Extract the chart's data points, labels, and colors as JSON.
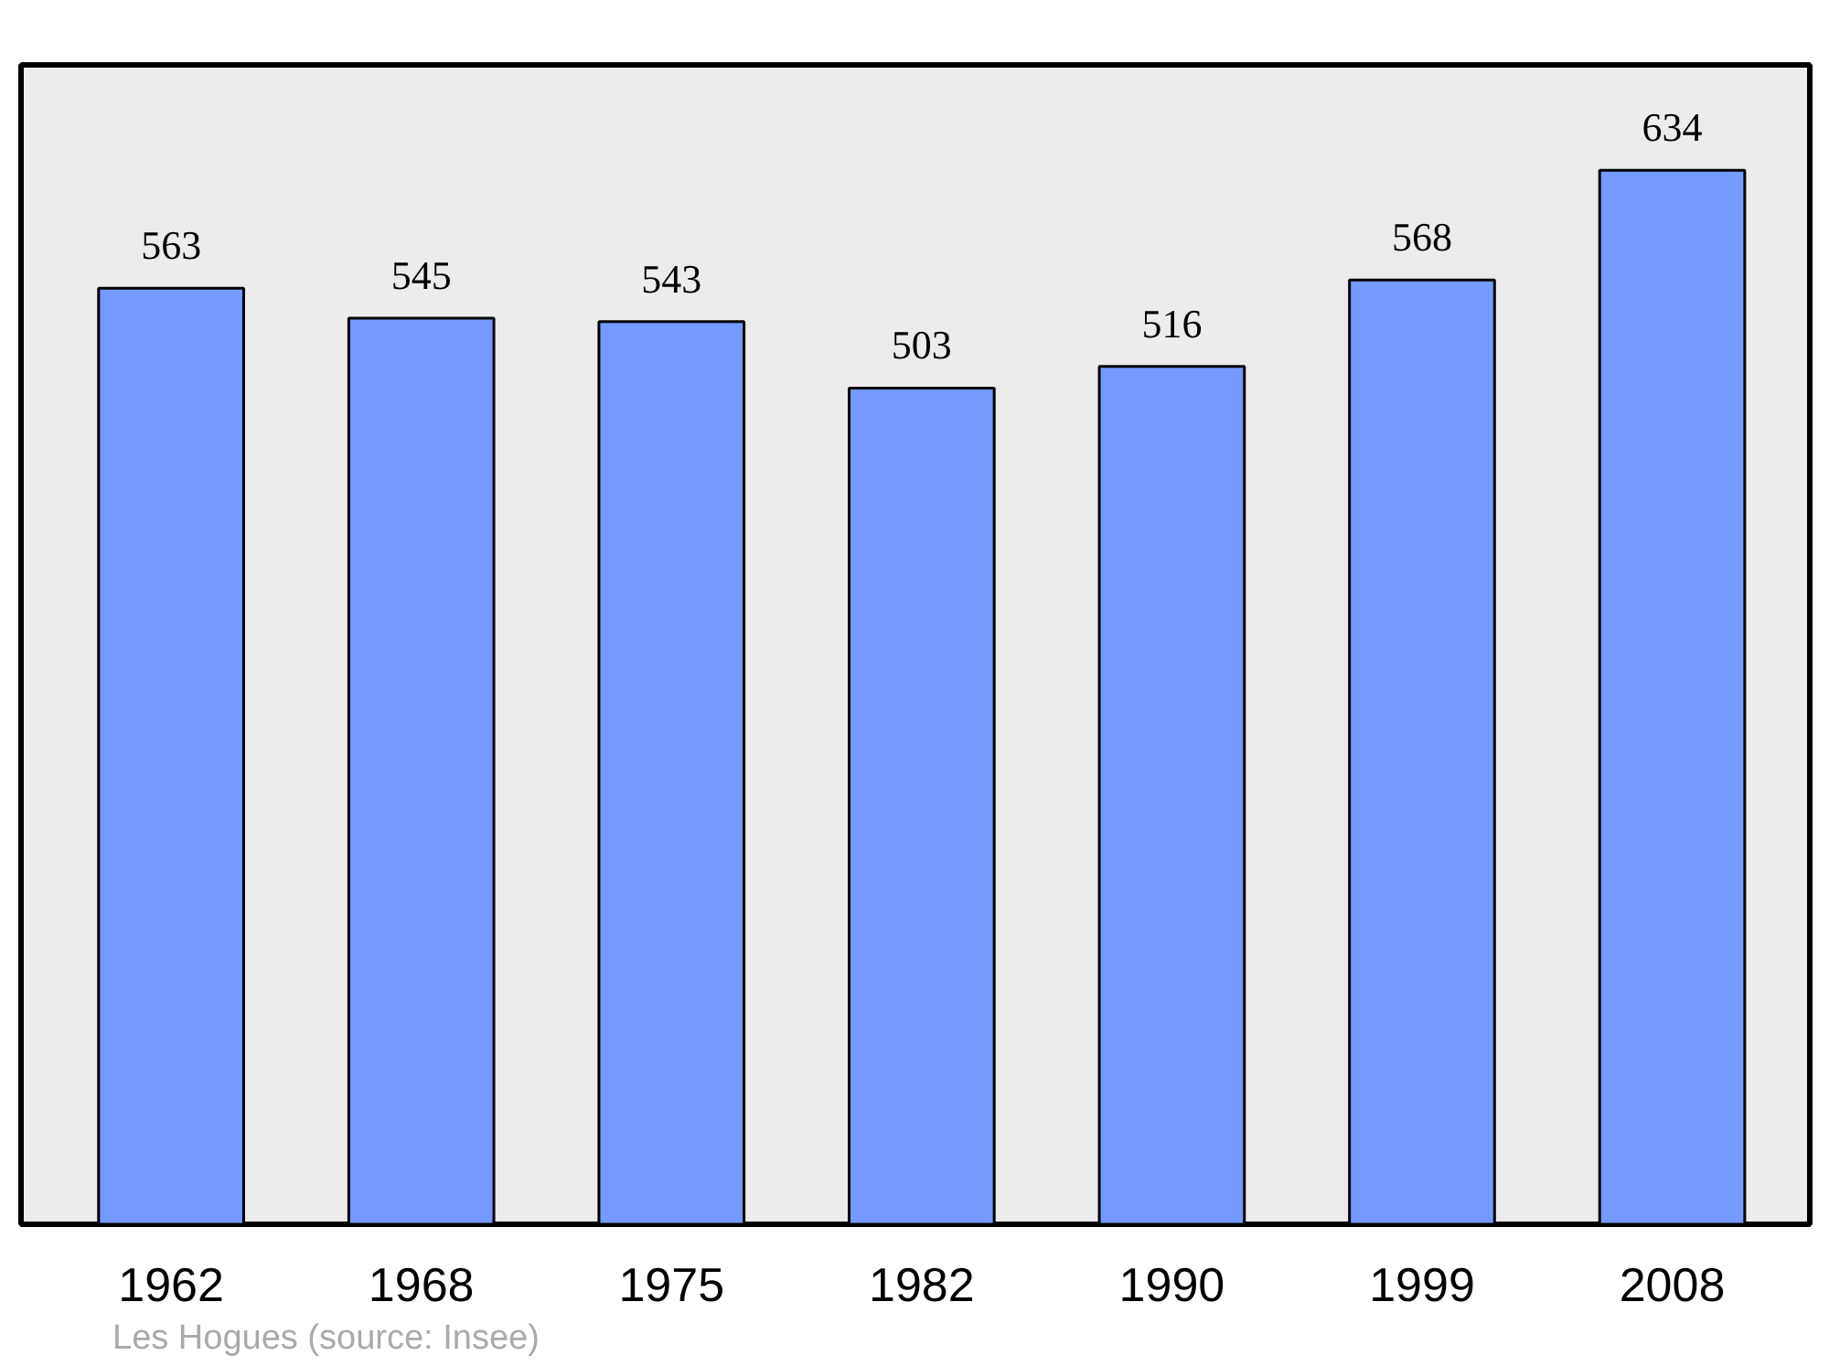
{
  "chart_data": {
    "type": "bar",
    "categories": [
      "1962",
      "1968",
      "1975",
      "1982",
      "1990",
      "1999",
      "2008"
    ],
    "values": [
      563,
      545,
      543,
      503,
      516,
      568,
      634
    ],
    "color": "#7499ff",
    "data_labels": true,
    "grid": false,
    "annotations": [
      "Les Hogues    (source: Insee)"
    ]
  }
}
